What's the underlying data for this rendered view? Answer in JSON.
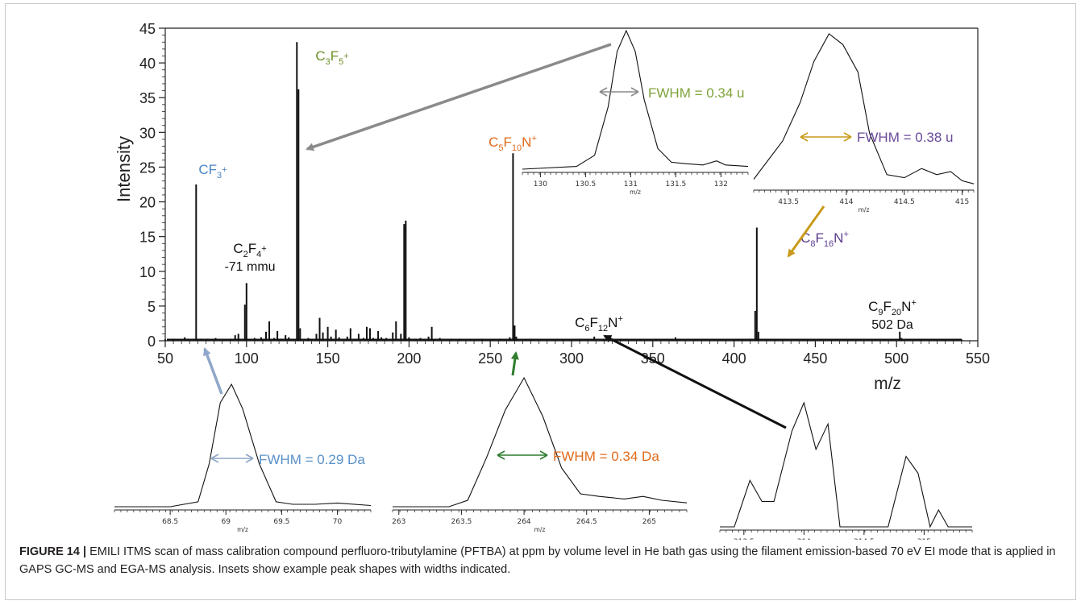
{
  "chart_data": {
    "type": "bar",
    "xlabel": "m/z",
    "ylabel": "Intensity",
    "xlim": [
      50,
      550
    ],
    "ylim": [
      0,
      45
    ],
    "xticks": [
      "50",
      "100",
      "150",
      "200",
      "250",
      "300",
      "350",
      "400",
      "450",
      "500",
      "550"
    ],
    "yticks": [
      "0",
      "5",
      "10",
      "15",
      "20",
      "25",
      "30",
      "35",
      "40",
      "45"
    ],
    "peaks": [
      {
        "mz": 50,
        "y": 0.2
      },
      {
        "mz": 55,
        "y": 0.3
      },
      {
        "mz": 58,
        "y": 0.2
      },
      {
        "mz": 62,
        "y": 0.5
      },
      {
        "mz": 64,
        "y": 0.3
      },
      {
        "mz": 69,
        "y": 22.5
      },
      {
        "mz": 72,
        "y": 0.3
      },
      {
        "mz": 76,
        "y": 0.3
      },
      {
        "mz": 81,
        "y": 0.4
      },
      {
        "mz": 86,
        "y": 0.2
      },
      {
        "mz": 90,
        "y": 0.3
      },
      {
        "mz": 93,
        "y": 0.8
      },
      {
        "mz": 95,
        "y": 1.0
      },
      {
        "mz": 99,
        "y": 5.2
      },
      {
        "mz": 100,
        "y": 8.3
      },
      {
        "mz": 105,
        "y": 0.4
      },
      {
        "mz": 109,
        "y": 0.5
      },
      {
        "mz": 112,
        "y": 1.3
      },
      {
        "mz": 114,
        "y": 2.8
      },
      {
        "mz": 117,
        "y": 0.4
      },
      {
        "mz": 119,
        "y": 1.4
      },
      {
        "mz": 121,
        "y": 0.3
      },
      {
        "mz": 124,
        "y": 0.8
      },
      {
        "mz": 126,
        "y": 0.5
      },
      {
        "mz": 131,
        "y": 43.0
      },
      {
        "mz": 132,
        "y": 36.2
      },
      {
        "mz": 133,
        "y": 1.8
      },
      {
        "mz": 138,
        "y": 0.4
      },
      {
        "mz": 143,
        "y": 1.0
      },
      {
        "mz": 145,
        "y": 3.3
      },
      {
        "mz": 147,
        "y": 1.2
      },
      {
        "mz": 150,
        "y": 2.0
      },
      {
        "mz": 152,
        "y": 0.6
      },
      {
        "mz": 155,
        "y": 1.6
      },
      {
        "mz": 157,
        "y": 0.5
      },
      {
        "mz": 162,
        "y": 0.6
      },
      {
        "mz": 164,
        "y": 1.8
      },
      {
        "mz": 169,
        "y": 1.0
      },
      {
        "mz": 172,
        "y": 0.4
      },
      {
        "mz": 174,
        "y": 2.0
      },
      {
        "mz": 176,
        "y": 1.8
      },
      {
        "mz": 178,
        "y": 0.4
      },
      {
        "mz": 181,
        "y": 1.4
      },
      {
        "mz": 183,
        "y": 0.5
      },
      {
        "mz": 186,
        "y": 0.4
      },
      {
        "mz": 190,
        "y": 1.2
      },
      {
        "mz": 192,
        "y": 2.8
      },
      {
        "mz": 195,
        "y": 1.0
      },
      {
        "mz": 197,
        "y": 16.8
      },
      {
        "mz": 198,
        "y": 17.3
      },
      {
        "mz": 200,
        "y": 0.5
      },
      {
        "mz": 204,
        "y": 0.3
      },
      {
        "mz": 207,
        "y": 0.4
      },
      {
        "mz": 212,
        "y": 0.6
      },
      {
        "mz": 214,
        "y": 2.0
      },
      {
        "mz": 219,
        "y": 0.4
      },
      {
        "mz": 226,
        "y": 0.3
      },
      {
        "mz": 231,
        "y": 0.3
      },
      {
        "mz": 238,
        "y": 0.2
      },
      {
        "mz": 245,
        "y": 0.3
      },
      {
        "mz": 250,
        "y": 0.2
      },
      {
        "mz": 256,
        "y": 0.3
      },
      {
        "mz": 262,
        "y": 0.5
      },
      {
        "mz": 264,
        "y": 27.0
      },
      {
        "mz": 265,
        "y": 2.2
      },
      {
        "mz": 266,
        "y": 0.6
      },
      {
        "mz": 275,
        "y": 0.3
      },
      {
        "mz": 285,
        "y": 0.2
      },
      {
        "mz": 295,
        "y": 0.2
      },
      {
        "mz": 305,
        "y": 0.3
      },
      {
        "mz": 314,
        "y": 0.6
      },
      {
        "mz": 320,
        "y": 0.2
      },
      {
        "mz": 330,
        "y": 0.3
      },
      {
        "mz": 342,
        "y": 0.2
      },
      {
        "mz": 352,
        "y": 0.3
      },
      {
        "mz": 364,
        "y": 0.5
      },
      {
        "mz": 376,
        "y": 0.2
      },
      {
        "mz": 388,
        "y": 0.2
      },
      {
        "mz": 400,
        "y": 0.2
      },
      {
        "mz": 410,
        "y": 0.3
      },
      {
        "mz": 413,
        "y": 4.3
      },
      {
        "mz": 414,
        "y": 16.3
      },
      {
        "mz": 415,
        "y": 1.3
      },
      {
        "mz": 420,
        "y": 0.2
      },
      {
        "mz": 430,
        "y": 0.2
      },
      {
        "mz": 445,
        "y": 0.2
      },
      {
        "mz": 460,
        "y": 0.2
      },
      {
        "mz": 475,
        "y": 0.2
      },
      {
        "mz": 490,
        "y": 0.2
      },
      {
        "mz": 502,
        "y": 1.3
      },
      {
        "mz": 503,
        "y": 0.4
      },
      {
        "mz": 515,
        "y": 0.2
      },
      {
        "mz": 530,
        "y": 0.2
      },
      {
        "mz": 540,
        "y": 0.2
      }
    ],
    "annotations": [
      {
        "base": "CF",
        "sub1": "3",
        "mid": "",
        "sub2": "",
        "tail": "",
        "sup": "+",
        "extra": "",
        "color": "#4a86c5",
        "mz": 69
      },
      {
        "base": "C",
        "sub1": "3",
        "mid": "F",
        "sub2": "5",
        "tail": "",
        "sup": "+",
        "extra": "",
        "color": "#6e8f2a",
        "mz": 131
      },
      {
        "base": "C",
        "sub1": "2",
        "mid": "F",
        "sub2": "4",
        "tail": "",
        "sup": "+",
        "extra": "-71 mmu",
        "color": "#111111",
        "mz": 100
      },
      {
        "base": "C",
        "sub1": "5",
        "mid": "F",
        "sub2": "10",
        "tail": "N",
        "sup": "+",
        "extra": "",
        "color": "#e06b1c",
        "mz": 264
      },
      {
        "base": "C",
        "sub1": "6",
        "mid": "F",
        "sub2": "12",
        "tail": "N",
        "sup": "+",
        "extra": "",
        "color": "#111111",
        "mz": 314
      },
      {
        "base": "C",
        "sub1": "8",
        "mid": "F",
        "sub2": "16",
        "tail": "N",
        "sup": "+",
        "extra": "",
        "color": "#5b3b8c",
        "mz": 414
      },
      {
        "base": "C",
        "sub1": "9",
        "mid": "F",
        "sub2": "20",
        "tail": "N",
        "sup": "+",
        "extra": "502 Da",
        "color": "#111111",
        "mz": 502
      }
    ],
    "insets": [
      {
        "id": "inset-131",
        "xlim": [
          129.8,
          132.3
        ],
        "ticks": [
          "130",
          "130.5",
          "131",
          "131.5",
          "132"
        ],
        "xlabel": "m/z",
        "fwhm": "FWHM = 0.34 u",
        "fwhm_color": "#7fa33a",
        "arrow_color": "#8a8a8a",
        "x": [
          129.8,
          130.4,
          130.6,
          130.75,
          130.85,
          130.95,
          131.05,
          131.15,
          131.3,
          131.45,
          131.6,
          131.8,
          131.95,
          132.05,
          132.3
        ],
        "y": [
          0.0,
          0.02,
          0.1,
          0.45,
          0.85,
          1.0,
          0.85,
          0.5,
          0.15,
          0.05,
          0.04,
          0.03,
          0.06,
          0.03,
          0.02
        ]
      },
      {
        "id": "inset-414",
        "xlim": [
          413.2,
          415.1
        ],
        "ticks": [
          "413.5",
          "414",
          "414.5",
          "415"
        ],
        "xlabel": "m/z",
        "fwhm": "FWHM = 0.38 u",
        "fwhm_color": "#6a4a9a",
        "arrow_color": "#c99a1a",
        "x": [
          413.2,
          413.45,
          413.6,
          413.72,
          413.85,
          413.97,
          414.1,
          414.2,
          414.35,
          414.5,
          414.65,
          414.78,
          414.9,
          415.0,
          415.1
        ],
        "y": [
          0.05,
          0.3,
          0.55,
          0.82,
          1.0,
          0.93,
          0.75,
          0.35,
          0.08,
          0.06,
          0.12,
          0.08,
          0.1,
          0.04,
          0.02
        ]
      },
      {
        "id": "inset-69",
        "xlim": [
          68.0,
          70.3
        ],
        "ticks": [
          "68.5",
          "69",
          "69.5",
          "70"
        ],
        "xlabel": "m/z",
        "fwhm": "FWHM = 0.29 Da",
        "fwhm_color": "#5a90c8",
        "arrow_color": "#8fa7c9",
        "x": [
          68.0,
          68.5,
          68.75,
          68.85,
          68.95,
          69.05,
          69.15,
          69.3,
          69.45,
          69.6,
          69.8,
          70.0,
          70.3
        ],
        "y": [
          0.0,
          0.0,
          0.04,
          0.35,
          0.85,
          1.0,
          0.8,
          0.35,
          0.04,
          0.02,
          0.02,
          0.03,
          0.01
        ]
      },
      {
        "id": "inset-264",
        "xlim": [
          262.95,
          265.3
        ],
        "ticks": [
          "263",
          "263.5",
          "264",
          "264.5",
          "265"
        ],
        "xlabel": "m/z",
        "fwhm": "FWHM = 0.34 Da",
        "fwhm_color": "#e06b1c",
        "arrow_color": "#2f7d2f",
        "x": [
          262.95,
          263.4,
          263.55,
          263.7,
          263.85,
          264.0,
          264.15,
          264.3,
          264.45,
          264.6,
          264.8,
          264.95,
          265.1,
          265.3
        ],
        "y": [
          0.0,
          0.0,
          0.05,
          0.38,
          0.75,
          1.0,
          0.7,
          0.3,
          0.1,
          0.08,
          0.06,
          0.08,
          0.05,
          0.03
        ]
      },
      {
        "id": "inset-314",
        "xlim": [
          313.3,
          315.4
        ],
        "ticks": [
          "313.5",
          "314",
          "314.5",
          "315"
        ],
        "xlabel": "m/z",
        "fwhm": "",
        "fwhm_color": "#111111",
        "arrow_color": "#111111",
        "x": [
          313.3,
          313.42,
          313.55,
          313.65,
          313.75,
          313.9,
          314.0,
          314.1,
          314.2,
          314.3,
          314.4,
          314.55,
          314.7,
          314.85,
          314.95,
          315.05,
          315.12,
          315.2,
          315.3,
          315.4
        ],
        "y": [
          0.0,
          0.0,
          0.33,
          0.18,
          0.18,
          0.68,
          0.88,
          0.55,
          0.73,
          0.0,
          0.0,
          0.0,
          0.0,
          0.5,
          0.38,
          0.0,
          0.12,
          0.0,
          0.0,
          0.0
        ]
      }
    ]
  },
  "caption": {
    "label": "FIGURE 14 |",
    "text": "EMILI ITMS scan of mass calibration compound perfluoro-tributylamine (PFTBA) at ppm by volume level in He bath gas using the filament emission-based 70 eV EI mode that is applied in GAPS GC-MS and EGA-MS analysis. Insets show example peak shapes with widths indicated."
  }
}
